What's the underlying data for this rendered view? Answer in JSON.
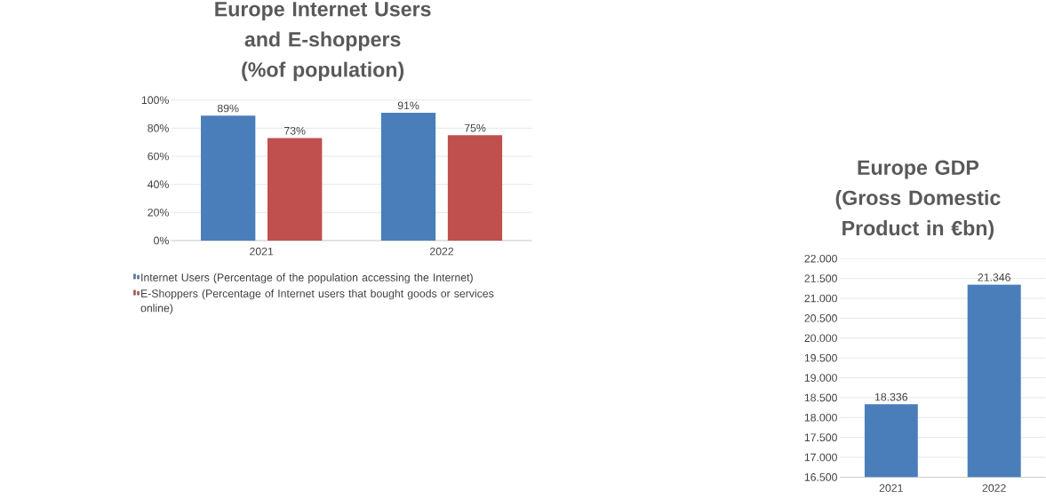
{
  "chart_data": [
    {
      "type": "bar",
      "title": "Europe Internet Users and E-shoppers (%of population)",
      "categories": [
        "2021",
        "2022"
      ],
      "series": [
        {
          "name": "Internet Users (Percentage of the population accessing the Internet)",
          "color": "#4a7ebb",
          "values": [
            89,
            91
          ],
          "value_labels": [
            "89%",
            "91%"
          ]
        },
        {
          "name": "E-Shoppers (Percentage of Internet users that bought goods or services online)",
          "color": "#c0504d",
          "values": [
            73,
            75
          ],
          "value_labels": [
            "73%",
            "75%"
          ]
        }
      ],
      "ylim": [
        0,
        100
      ],
      "yticks": [
        {
          "value": 0,
          "label": "0%"
        },
        {
          "value": 20,
          "label": "20%"
        },
        {
          "value": 40,
          "label": "40%"
        },
        {
          "value": 60,
          "label": "60%"
        },
        {
          "value": 80,
          "label": "80%"
        },
        {
          "value": 100,
          "label": "100%"
        }
      ],
      "grid": "y",
      "legend": "bottom"
    },
    {
      "type": "bar",
      "title": "Europe GDP (Gross Domestic Product in €bn)",
      "categories": [
        "2021",
        "2022"
      ],
      "series": [
        {
          "color": "#4a7ebb",
          "values": [
            18336,
            21346
          ],
          "value_labels": [
            "18.336",
            "21.346"
          ]
        }
      ],
      "ylim": [
        16500,
        22000
      ],
      "yticks": [
        {
          "value": 16500,
          "label": "16.500"
        },
        {
          "value": 17000,
          "label": "17.000"
        },
        {
          "value": 17500,
          "label": "17.500"
        },
        {
          "value": 18000,
          "label": "18.000"
        },
        {
          "value": 18500,
          "label": "18.500"
        },
        {
          "value": 19000,
          "label": "19.000"
        },
        {
          "value": 19500,
          "label": "19.500"
        },
        {
          "value": 20000,
          "label": "20.000"
        },
        {
          "value": 20500,
          "label": "20.500"
        },
        {
          "value": 21000,
          "label": "21.000"
        },
        {
          "value": 21500,
          "label": "21.500"
        },
        {
          "value": 22000,
          "label": "22.000"
        }
      ],
      "grid": "y",
      "legend": false
    }
  ]
}
